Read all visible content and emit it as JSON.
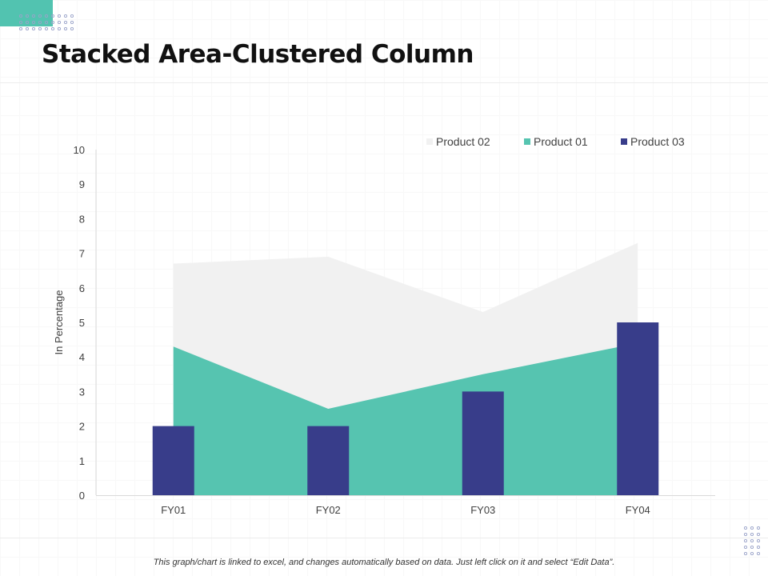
{
  "slide": {
    "title": "Stacked Area-Clustered Column",
    "footnote": "This graph/chart is linked to excel, and changes automatically  based on data.  Just left click on it and select “Edit Data”."
  },
  "colors": {
    "accent": "#52c3b0",
    "product01": "#56c4b0",
    "product02": "#f1f1f1",
    "product03": "#383d8a",
    "dots": "#9aa3c9"
  },
  "chart_data": {
    "type": "area",
    "categories": [
      "FY01",
      "FY02",
      "FY03",
      "FY04"
    ],
    "ylabel": "In Percentage",
    "ylim": [
      0,
      10
    ],
    "yticks": [
      "0",
      "1",
      "2",
      "3",
      "4",
      "5",
      "6",
      "7",
      "8",
      "9",
      "10"
    ],
    "grid": false,
    "legend_position": "top-right",
    "stacked_area_series": [
      {
        "name": "Product 01",
        "values": [
          4.3,
          2.5,
          3.5,
          4.4
        ]
      },
      {
        "name": "Product 02",
        "values": [
          2.4,
          4.4,
          1.8,
          2.9
        ]
      }
    ],
    "column_series": [
      {
        "name": "Product 03",
        "values": [
          2,
          2,
          3,
          5
        ]
      }
    ],
    "legend": [
      "Product 02",
      "Product 01",
      "Product 03"
    ]
  }
}
